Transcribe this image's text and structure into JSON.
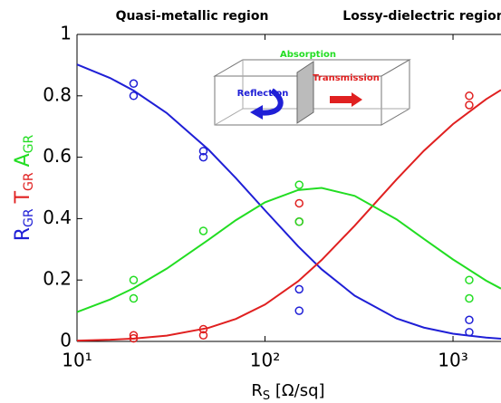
{
  "chart_data": {
    "type": "line",
    "annotations": [
      "Quasi-metallic region",
      "Lossy-dielectric region"
    ],
    "inset_labels": {
      "absorption": "Absorption",
      "reflection": "Reflection",
      "transmission": "Transmission"
    },
    "x_label": {
      "main": "R",
      "sub": "S",
      "rest": " [Ω/sq]"
    },
    "y_label": [
      {
        "main": "R",
        "sub": "GR",
        "color": "#1f1fd6"
      },
      {
        "main": "T",
        "sub": "GR",
        "color": "#e02020"
      },
      {
        "main": "A",
        "sub": "GR",
        "color": "#22dd22"
      }
    ],
    "x_scale": "log",
    "xlim": [
      10,
      1800
    ],
    "xticks": [
      {
        "value": 10,
        "label": "10¹"
      },
      {
        "value": 100,
        "label": "10²"
      },
      {
        "value": 1000,
        "label": "10³"
      }
    ],
    "ylim": [
      0,
      1
    ],
    "yticks": [
      0,
      0.2,
      0.4,
      0.6,
      0.8,
      1
    ],
    "x": [
      10,
      15,
      20,
      30,
      50,
      70,
      100,
      150,
      200,
      300,
      500,
      700,
      1000,
      1500,
      1800
    ],
    "series": [
      {
        "color": "#1f1fd6",
        "values": [
          0.902,
          0.858,
          0.817,
          0.744,
          0.625,
          0.532,
          0.427,
          0.31,
          0.235,
          0.149,
          0.075,
          0.045,
          0.025,
          0.0125,
          0.009
        ]
      },
      {
        "color": "#e02020",
        "values": [
          0.0025,
          0.0054,
          0.0092,
          0.0189,
          0.044,
          0.0733,
          0.12,
          0.196,
          0.265,
          0.377,
          0.527,
          0.621,
          0.708,
          0.789,
          0.819
        ]
      },
      {
        "color": "#22dd22",
        "values": [
          0.0957,
          0.1366,
          0.1734,
          0.237,
          0.331,
          0.395,
          0.453,
          0.493,
          0.5,
          0.474,
          0.398,
          0.334,
          0.267,
          0.198,
          0.172
        ]
      }
    ],
    "scatter_series": [
      {
        "color": "#1f1fd6",
        "x": [
          20,
          20,
          47,
          47,
          152,
          152,
          1220,
          1220
        ],
        "values": [
          0.84,
          0.8,
          0.62,
          0.6,
          0.17,
          0.1,
          0.07,
          0.03
        ]
      },
      {
        "color": "#e02020",
        "x": [
          20,
          20,
          47,
          47,
          152,
          152,
          1220,
          1220
        ],
        "values": [
          0.02,
          0.01,
          0.04,
          0.02,
          0.45,
          0.39,
          0.8,
          0.77
        ]
      },
      {
        "color": "#22dd22",
        "x": [
          20,
          20,
          47,
          152,
          152,
          1220,
          1220
        ],
        "values": [
          0.2,
          0.14,
          0.36,
          0.51,
          0.39,
          0.2,
          0.14
        ]
      }
    ]
  }
}
